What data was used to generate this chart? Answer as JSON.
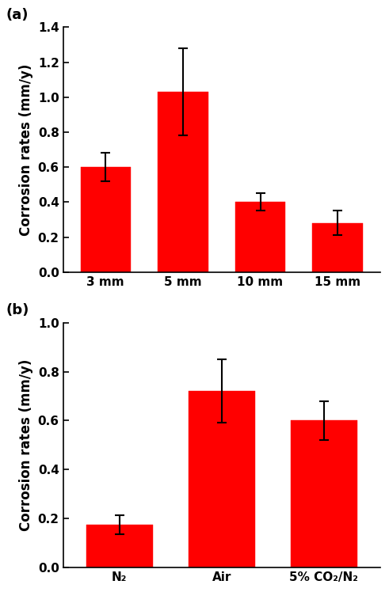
{
  "panel_a": {
    "categories": [
      "3 mm",
      "5 mm",
      "10 mm",
      "15 mm"
    ],
    "values": [
      0.6,
      1.03,
      0.4,
      0.28
    ],
    "errors": [
      0.08,
      0.25,
      0.05,
      0.07
    ],
    "ylim": [
      0,
      1.4
    ],
    "yticks": [
      0.0,
      0.2,
      0.4,
      0.6,
      0.8,
      1.0,
      1.2,
      1.4
    ],
    "ylabel": "Corrosion rates (mm/y)",
    "label": "(a)"
  },
  "panel_b": {
    "categories": [
      "N₂",
      "Air",
      "5% CO₂/N₂"
    ],
    "values": [
      0.175,
      0.72,
      0.6
    ],
    "errors": [
      0.04,
      0.13,
      0.08
    ],
    "ylim": [
      0,
      1.0
    ],
    "yticks": [
      0.0,
      0.2,
      0.4,
      0.6,
      0.8,
      1.0
    ],
    "ylabel": "Corrosion rates (mm/y)",
    "label": "(b)"
  },
  "bar_color": "#ff0000",
  "bar_width": 0.65,
  "bar_edge_color": "#ff0000",
  "error_color": "black",
  "error_capsize": 4,
  "error_linewidth": 1.5,
  "tick_fontsize": 11,
  "label_fontsize": 12,
  "panel_label_fontsize": 13,
  "background_color": "#ffffff"
}
